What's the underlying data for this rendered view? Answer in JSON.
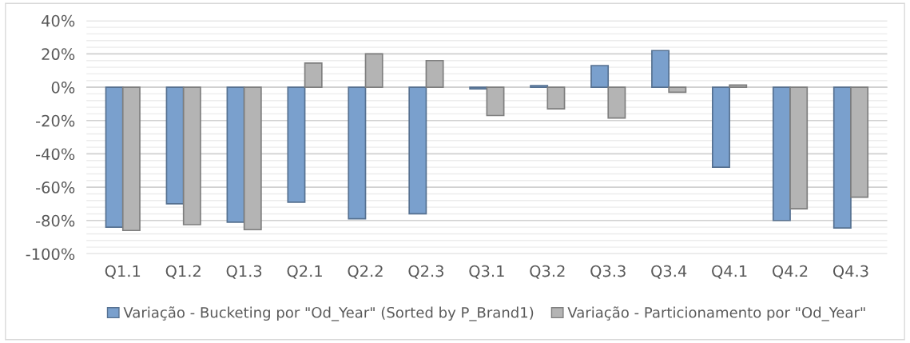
{
  "chart_data": {
    "type": "bar",
    "categories": [
      "Q1.1",
      "Q1.2",
      "Q1.3",
      "Q2.1",
      "Q2.2",
      "Q2.3",
      "Q3.1",
      "Q3.2",
      "Q3.3",
      "Q3.4",
      "Q4.1",
      "Q4.2",
      "Q4.3"
    ],
    "series": [
      {
        "name": "Variação - Bucketing por \"Od_Year\" (Sorted by P_Brand1)",
        "color": "#7aa0cd",
        "values": [
          -84,
          -70,
          -81,
          -69,
          -79,
          -76,
          -1,
          1,
          13,
          22,
          -48,
          -80,
          -84.5
        ]
      },
      {
        "name": "Variação - Particionamento por \"Od_Year\"",
        "color": "#b4b4b4",
        "values": [
          -86,
          -82.5,
          -85.5,
          14.5,
          20,
          16,
          -17,
          -13,
          -18.5,
          -3,
          1.3,
          -73,
          -66
        ]
      }
    ],
    "ylim": [
      -100,
      40
    ],
    "yticks": [
      {
        "value": -100,
        "label": "-100%"
      },
      {
        "value": -80,
        "label": "-80%"
      },
      {
        "value": -60,
        "label": "-60%"
      },
      {
        "value": -40,
        "label": "-40%"
      },
      {
        "value": -20,
        "label": "-20%"
      },
      {
        "value": 0,
        "label": "0%"
      },
      {
        "value": 20,
        "label": "20%"
      },
      {
        "value": 40,
        "label": "40%"
      }
    ],
    "grid": "y",
    "legend": "bottom"
  }
}
